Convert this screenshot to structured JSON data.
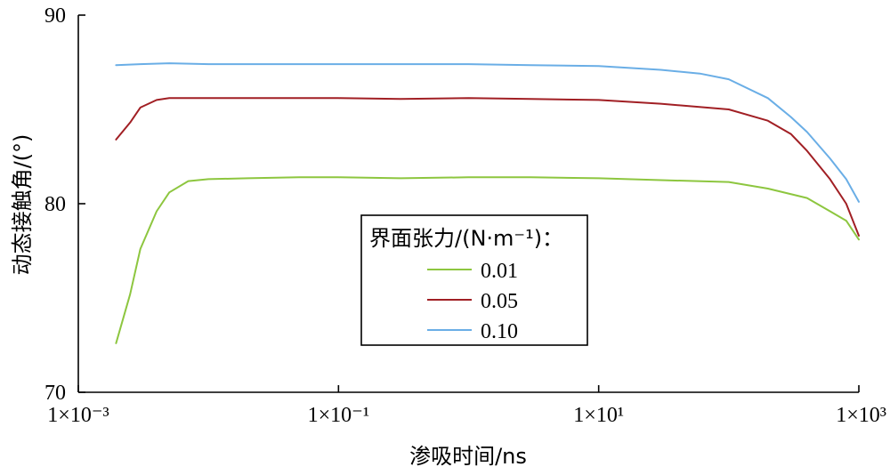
{
  "chart_data": {
    "type": "line",
    "title": "",
    "xlabel": "渗吸时间/ns",
    "ylabel": "动态接触角/(°)",
    "xscale": "log",
    "xlim": [
      0.001,
      1000
    ],
    "ylim": [
      70,
      90
    ],
    "x_ticks": [
      {
        "value": 0.001,
        "label": "1×10⁻³"
      },
      {
        "value": 0.1,
        "label": "1×10⁻¹"
      },
      {
        "value": 10,
        "label": "1×10¹"
      },
      {
        "value": 1000,
        "label": "1×10³"
      }
    ],
    "y_ticks": [
      {
        "value": 70,
        "label": "70"
      },
      {
        "value": 80,
        "label": "80"
      },
      {
        "value": 90,
        "label": "90"
      }
    ],
    "grid": false,
    "legend": {
      "title": "界面张力/(N·m⁻¹)：",
      "placement": "center-right"
    },
    "series": [
      {
        "name": "0.01",
        "color": "#8dc63f",
        "x": [
          0.00195,
          0.0025,
          0.003,
          0.004,
          0.005,
          0.007,
          0.01,
          0.02,
          0.05,
          0.1,
          0.3,
          1,
          3,
          10,
          30,
          100,
          200,
          400,
          600,
          800,
          1000
        ],
        "y": [
          72.6,
          75.2,
          77.6,
          79.6,
          80.6,
          81.2,
          81.3,
          81.35,
          81.4,
          81.4,
          81.35,
          81.4,
          81.4,
          81.35,
          81.25,
          81.15,
          80.8,
          80.3,
          79.6,
          79.1,
          78.1
        ]
      },
      {
        "name": "0.05",
        "color": "#a11f24",
        "x": [
          0.00195,
          0.0025,
          0.003,
          0.004,
          0.005,
          0.007,
          0.01,
          0.02,
          0.05,
          0.1,
          0.3,
          1,
          3,
          10,
          30,
          100,
          200,
          300,
          400,
          600,
          800,
          1000
        ],
        "y": [
          83.4,
          84.3,
          85.1,
          85.5,
          85.6,
          85.6,
          85.6,
          85.6,
          85.6,
          85.6,
          85.55,
          85.6,
          85.55,
          85.5,
          85.3,
          85.0,
          84.4,
          83.7,
          82.8,
          81.3,
          80.0,
          78.3
        ]
      },
      {
        "name": "0.10",
        "color": "#6aaee6",
        "x": [
          0.00195,
          0.003,
          0.005,
          0.01,
          0.03,
          0.1,
          0.3,
          1,
          3,
          10,
          30,
          60,
          100,
          200,
          300,
          400,
          600,
          800,
          1000
        ],
        "y": [
          87.35,
          87.4,
          87.45,
          87.4,
          87.4,
          87.4,
          87.4,
          87.4,
          87.35,
          87.3,
          87.1,
          86.9,
          86.6,
          85.6,
          84.6,
          83.8,
          82.4,
          81.3,
          80.1
        ]
      }
    ]
  }
}
